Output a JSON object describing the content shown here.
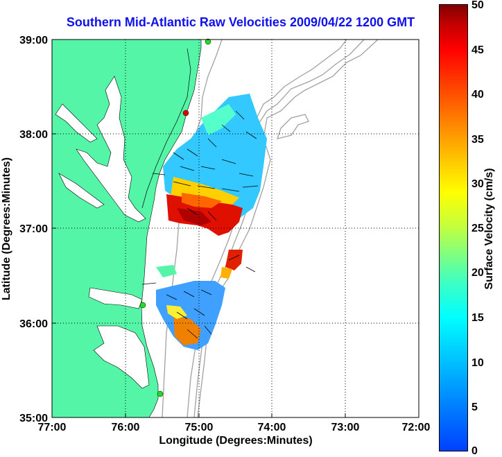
{
  "title": "Southern Mid-Atlantic Raw Velocities 2009/04/22 1200 GMT",
  "map": {
    "xlabel": "Longitude (Degrees:Minutes)",
    "ylabel": "Latitude (Degrees:Minutes)",
    "x_ticks": [
      "77:00",
      "76:00",
      "75:00",
      "74:00",
      "73:00",
      "72:00"
    ],
    "y_ticks": [
      "39:00",
      "38:00",
      "37:00",
      "36:00",
      "35:00"
    ],
    "lon_range": [
      -77,
      -72
    ],
    "lat_range": [
      35,
      39
    ],
    "land_color": "#55f5a8",
    "grid": true
  },
  "colorbar": {
    "label": "Surface Velocity (cm/s)",
    "ticks": [
      "50",
      "45",
      "40",
      "35",
      "30",
      "25",
      "20",
      "15",
      "10",
      "5",
      "0"
    ],
    "range": [
      0,
      50
    ]
  }
}
